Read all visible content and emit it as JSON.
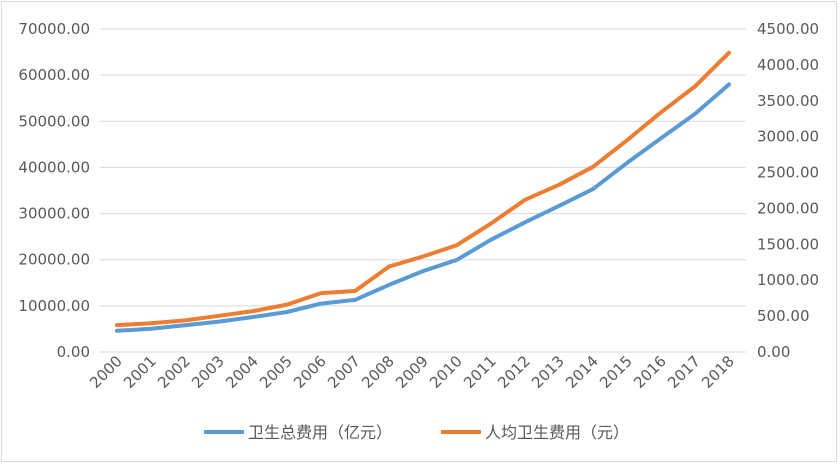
{
  "chart_data": {
    "type": "line",
    "categories": [
      "2000",
      "2001",
      "2002",
      "2003",
      "2004",
      "2005",
      "2006",
      "2007",
      "2008",
      "2009",
      "2010",
      "2011",
      "2012",
      "2013",
      "2014",
      "2015",
      "2016",
      "2017",
      "2018"
    ],
    "series": [
      {
        "name": "卫生总费用（亿元）",
        "axis": "left",
        "color": "#5b9bd5",
        "values": [
          4587,
          5026,
          5790,
          6584,
          7590,
          8660,
          10500,
          11300,
          14535,
          17542,
          19980,
          24346,
          28119,
          31669,
          35312,
          40975,
          46345,
          51600,
          58000
        ]
      },
      {
        "name": "人均卫生费用（元）",
        "axis": "right",
        "color": "#ed7d31",
        "values": [
          375,
          400,
          440,
          505,
          570,
          660,
          820,
          850,
          1190,
          1330,
          1490,
          1790,
          2120,
          2330,
          2580,
          2950,
          3340,
          3700,
          4170
        ]
      }
    ],
    "left_axis": {
      "min": 0,
      "max": 70000,
      "step": 10000,
      "tick_labels": [
        "0.00",
        "10000.00",
        "20000.00",
        "30000.00",
        "40000.00",
        "50000.00",
        "60000.00",
        "70000.00"
      ]
    },
    "right_axis": {
      "min": 0,
      "max": 4500,
      "step": 500,
      "tick_labels": [
        "0.00",
        "500.00",
        "1000.00",
        "1500.00",
        "2000.00",
        "2500.00",
        "3000.00",
        "3500.00",
        "4000.00",
        "4500.00"
      ]
    },
    "grid": true,
    "legend_position": "bottom"
  }
}
